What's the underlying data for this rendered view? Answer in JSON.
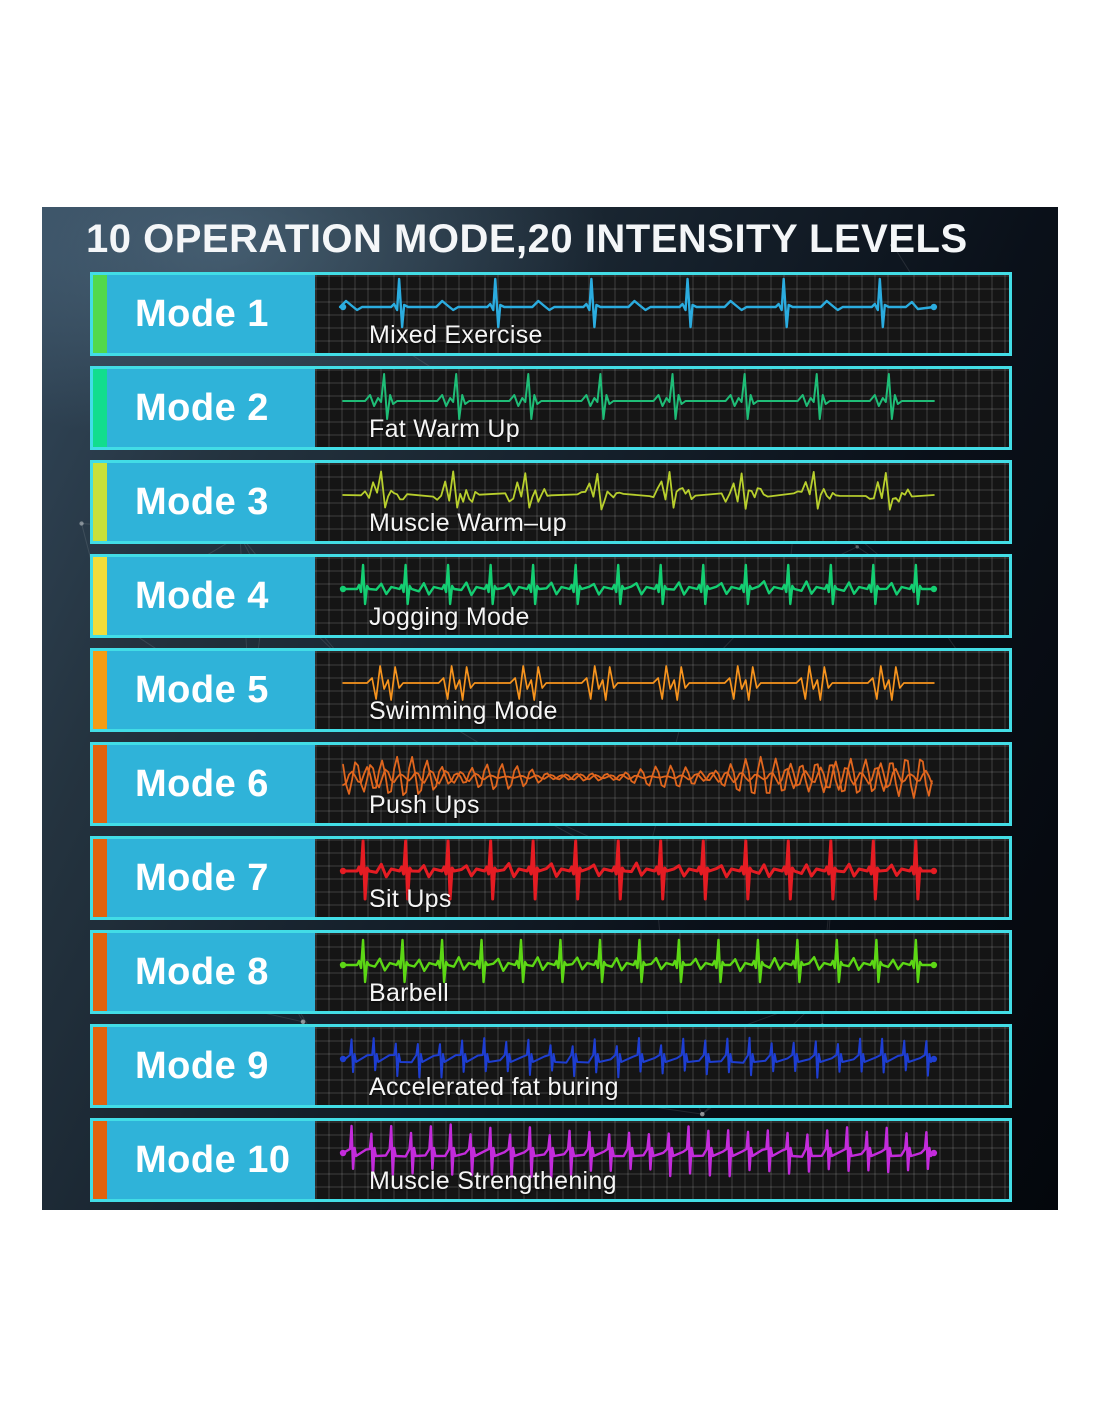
{
  "title": "10 OPERATION MODE,20 INTENSITY LEVELS",
  "theme": {
    "row_border_color": "#42dde6",
    "label_box_color": "#2fb3d9",
    "label_text_color": "#ffffff",
    "grid_panel_color": "#151515"
  },
  "modes": [
    {
      "name": "Mode 1",
      "description": "Mixed Exercise",
      "stripe_color": "#52d94c",
      "wave_color": "#2bacdf",
      "wave": {
        "kind": "ecg-sparse",
        "count": 6,
        "stroke": 2.4
      }
    },
    {
      "name": "Mode 2",
      "description": "Fat Warm Up",
      "stripe_color": "#12dd8d",
      "wave_color": "#1fbd77",
      "wave": {
        "kind": "cluster",
        "count": 8,
        "stroke": 2
      }
    },
    {
      "name": "Mode 3",
      "description": "Muscle Warm–up",
      "stripe_color": "#c9e03a",
      "wave_color": "#b8cf2d",
      "wave": {
        "kind": "noise-cluster",
        "count": 8,
        "stroke": 1.8
      }
    },
    {
      "name": "Mode 4",
      "description": "Jogging Mode",
      "stripe_color": "#f2dc3a",
      "wave_color": "#14ce72",
      "wave": {
        "kind": "ecg",
        "count": 14,
        "up": 24,
        "down": 15,
        "stroke": 2.4
      }
    },
    {
      "name": "Mode 5",
      "description": "Swimming Mode",
      "stripe_color": "#f59c14",
      "wave_color": "#f7941e",
      "wave": {
        "kind": "w-cluster",
        "count": 8,
        "stroke": 1.7
      }
    },
    {
      "name": "Mode 6",
      "description": "Push Ups",
      "stripe_color": "#e2620e",
      "wave_color": "#e0661e",
      "wave": {
        "kind": "spindle",
        "stroke": 1.8
      }
    },
    {
      "name": "Mode 7",
      "description": "Sit Ups",
      "stripe_color": "#e2620e",
      "wave_color": "#e51c23",
      "wave": {
        "kind": "ecg",
        "count": 14,
        "up": 30,
        "down": 28,
        "stroke": 3
      }
    },
    {
      "name": "Mode 8",
      "description": "Barbell",
      "stripe_color": "#e2620e",
      "wave_color": "#5cd715",
      "wave": {
        "kind": "ecg",
        "count": 15,
        "up": 25,
        "down": 17,
        "stroke": 2.4
      }
    },
    {
      "name": "Mode 9",
      "description": "Accelerated fat buring",
      "stripe_color": "#e2620e",
      "wave_color": "#1e3ed2",
      "wave": {
        "kind": "dense",
        "count": 27,
        "up": 17,
        "down": 15,
        "stroke": 2
      }
    },
    {
      "name": "Mode 10",
      "description": "Muscle Strengthening",
      "stripe_color": "#e2620e",
      "wave_color": "#c32bdb",
      "wave": {
        "kind": "dense",
        "count": 30,
        "up": 23,
        "down": 20,
        "stroke": 2.4
      }
    }
  ]
}
